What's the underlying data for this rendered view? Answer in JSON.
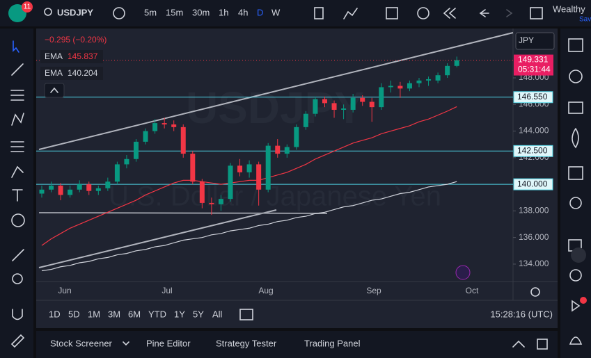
{
  "toolbar": {
    "alerts": "11",
    "symbol": "USDJPY",
    "intervals": [
      "5m",
      "15m",
      "30m",
      "1h",
      "4h",
      "D",
      "W"
    ],
    "account": "Wealthy",
    "account_sub": "Save"
  },
  "legend": {
    "change": "−0.295 (−0.20%)"
  },
  "chart": {
    "type": "candlestick",
    "currency": "JPY",
    "watermark": "USDJPY",
    "watermark_desc": "U.S. Dollar / Japanese Yen",
    "months": [
      "Jun",
      "Jul",
      "Aug",
      "Sep",
      "Oct"
    ],
    "open": [
      139.3,
      139.6,
      139.9,
      139.2,
      139.6,
      140.0,
      139.5,
      139.7,
      140.2,
      141.5,
      141.9,
      143.2,
      144.0,
      144.6,
      144.5,
      144.3,
      142.3,
      140.2,
      138.6,
      138.5,
      138.9,
      141.4,
      140.9,
      141.5,
      139.6,
      142.9,
      142.3,
      142.8,
      144.3,
      145.3,
      146.4,
      146.1,
      145.6,
      145.6,
      146.5,
      146.2,
      145.8,
      147.3,
      147.4,
      147.2,
      147.6,
      147.8,
      147.8,
      148.2,
      148.9
    ],
    "high": [
      139.9,
      140.2,
      140.1,
      139.9,
      140.3,
      140.2,
      139.9,
      140.5,
      141.7,
      142.2,
      143.4,
      144.2,
      144.9,
      145.0,
      144.8,
      144.5,
      142.5,
      140.4,
      139.0,
      139.2,
      141.6,
      141.9,
      141.8,
      141.7,
      143.1,
      143.4,
      143.0,
      144.5,
      145.5,
      146.6,
      146.6,
      146.3,
      146.0,
      146.8,
      146.7,
      146.5,
      147.6,
      147.8,
      147.7,
      147.8,
      148.0,
      148.1,
      148.4,
      149.1,
      149.6
    ],
    "low": [
      139.0,
      139.4,
      138.8,
      139.0,
      139.4,
      139.2,
      139.2,
      139.5,
      140.0,
      141.2,
      141.7,
      143.0,
      143.8,
      144.2,
      144.0,
      142.0,
      140.0,
      138.2,
      137.7,
      138.0,
      138.7,
      140.6,
      140.5,
      138.4,
      139.4,
      142.0,
      142.0,
      142.6,
      144.1,
      145.1,
      145.8,
      145.0,
      144.9,
      145.4,
      145.9,
      144.7,
      145.6,
      146.9,
      146.5,
      147.0,
      147.3,
      147.4,
      147.6,
      148.0,
      148.8
    ],
    "close": [
      139.6,
      139.9,
      139.2,
      139.6,
      140.0,
      139.5,
      139.7,
      140.2,
      141.5,
      141.9,
      143.2,
      144.0,
      144.6,
      144.5,
      144.3,
      142.3,
      140.2,
      138.6,
      138.5,
      138.9,
      141.4,
      140.9,
      141.5,
      139.6,
      142.9,
      142.3,
      142.8,
      144.3,
      145.3,
      146.4,
      146.1,
      145.6,
      145.7,
      146.5,
      146.2,
      145.8,
      147.3,
      147.4,
      147.2,
      147.6,
      147.8,
      147.9,
      148.2,
      148.9,
      149.331
    ],
    "up_color": "#089981",
    "down_color": "#f23645",
    "ema": [
      {
        "name": "EMA",
        "color": "#f23645",
        "last_label": "145.837",
        "values": [
          135.4,
          135.9,
          136.3,
          136.7,
          137.0,
          137.3,
          137.6,
          137.9,
          138.2,
          138.5,
          138.8,
          139.2,
          139.5,
          139.8,
          140.1,
          140.3,
          140.3,
          140.2,
          140.1,
          140.0,
          140.1,
          140.2,
          140.3,
          140.3,
          140.5,
          140.7,
          140.9,
          141.2,
          141.5,
          141.9,
          142.2,
          142.5,
          142.8,
          143.1,
          143.3,
          143.5,
          143.8,
          144.0,
          144.2,
          144.4,
          144.7,
          144.9,
          145.2,
          145.5,
          145.837
        ]
      },
      {
        "name": "EMA",
        "color": "#d1d4dc",
        "last_label": "140.204",
        "values": [
          133.5,
          133.6,
          133.8,
          133.9,
          134.1,
          134.2,
          134.4,
          134.5,
          134.7,
          134.8,
          135.0,
          135.1,
          135.3,
          135.4,
          135.6,
          135.8,
          135.9,
          136.0,
          136.2,
          136.3,
          136.5,
          136.6,
          136.7,
          136.9,
          137.0,
          137.2,
          137.3,
          137.5,
          137.6,
          137.8,
          137.9,
          138.1,
          138.3,
          138.4,
          138.6,
          138.8,
          138.9,
          139.1,
          139.3,
          139.4,
          139.6,
          139.8,
          139.9,
          140.0,
          140.204
        ]
      }
    ],
    "ylim": [
      132.69,
      151.66
    ],
    "yticks": [
      {
        "value": 134,
        "label": "134.000"
      },
      {
        "value": 136,
        "label": "136.000"
      },
      {
        "value": 138,
        "label": "138.000"
      },
      {
        "value": 142,
        "label": "142.000"
      },
      {
        "value": 144,
        "label": "144.000"
      },
      {
        "value": 146,
        "label": "146.000"
      },
      {
        "value": 148,
        "label": "148.000"
      }
    ],
    "levels": [
      {
        "value": 146.55,
        "label": "146.550"
      },
      {
        "value": 142.5,
        "label": "142.500"
      },
      {
        "value": 140,
        "label": "140.000"
      }
    ],
    "level_color": "#4dd0e1",
    "last_price": {
      "value": 149.331,
      "label": "149.331"
    },
    "countdown": "05:31:44"
  },
  "ranges": [
    "1D",
    "5D",
    "1M",
    "3M",
    "6M",
    "YTD",
    "1Y",
    "5Y",
    "All"
  ],
  "clock": "15:28:16 (UTC)",
  "panel": [
    "Stock Screener",
    "Pine Editor",
    "Strategy Tester",
    "Trading Panel"
  ]
}
